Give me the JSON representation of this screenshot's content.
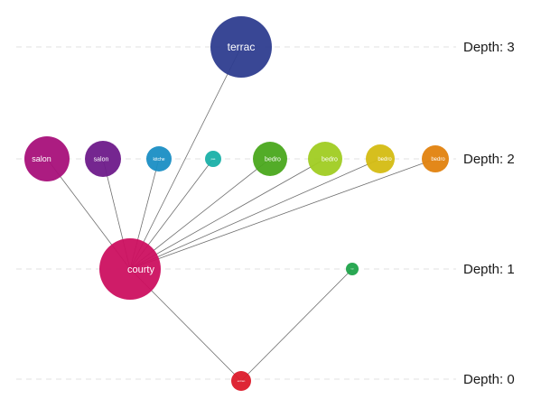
{
  "levels": [
    {
      "id": "d3",
      "label": "Depth: 3"
    },
    {
      "id": "d2",
      "label": "Depth: 2"
    },
    {
      "id": "d1",
      "label": "Depth: 1"
    },
    {
      "id": "d0",
      "label": "Depth: 0"
    }
  ],
  "nodes": [
    {
      "id": "terrace",
      "label": "terrac",
      "level": "d3",
      "color": "#2e3d8f"
    },
    {
      "id": "salon-1",
      "label": "salon",
      "level": "d2",
      "color": "#a8107a"
    },
    {
      "id": "salon-2",
      "label": "salon",
      "level": "d2",
      "color": "#6e1a8a"
    },
    {
      "id": "kitchen",
      "label": "kitche",
      "level": "d2",
      "color": "#1a8ec4"
    },
    {
      "id": "small-d2",
      "label": "pas",
      "level": "d2",
      "color": "#1ab0a8"
    },
    {
      "id": "bedroom-1",
      "label": "bedro",
      "level": "d2",
      "color": "#4aa81c"
    },
    {
      "id": "bedroom-2",
      "label": "bedro",
      "level": "d2",
      "color": "#a0cc22"
    },
    {
      "id": "bedroom-3",
      "label": "bedro",
      "level": "d2",
      "color": "#d4bc12"
    },
    {
      "id": "bedroom-4",
      "label": "bedro",
      "level": "d2",
      "color": "#e2820e"
    },
    {
      "id": "courtyard",
      "label": "courty",
      "level": "d1",
      "color": "#cc1060"
    },
    {
      "id": "small-d1",
      "label": "hall",
      "level": "d1",
      "color": "#1fa34a"
    },
    {
      "id": "root",
      "label": "entran",
      "level": "d0",
      "color": "#dc1a2a"
    }
  ],
  "edges": [
    [
      "courtyard",
      "salon-1"
    ],
    [
      "courtyard",
      "salon-2"
    ],
    [
      "courtyard",
      "kitchen"
    ],
    [
      "courtyard",
      "small-d2"
    ],
    [
      "courtyard",
      "bedroom-1"
    ],
    [
      "courtyard",
      "bedroom-2"
    ],
    [
      "courtyard",
      "bedroom-3"
    ],
    [
      "courtyard",
      "bedroom-4"
    ],
    [
      "courtyard",
      "terrace"
    ],
    [
      "courtyard",
      "root"
    ],
    [
      "small-d1",
      "root"
    ]
  ]
}
